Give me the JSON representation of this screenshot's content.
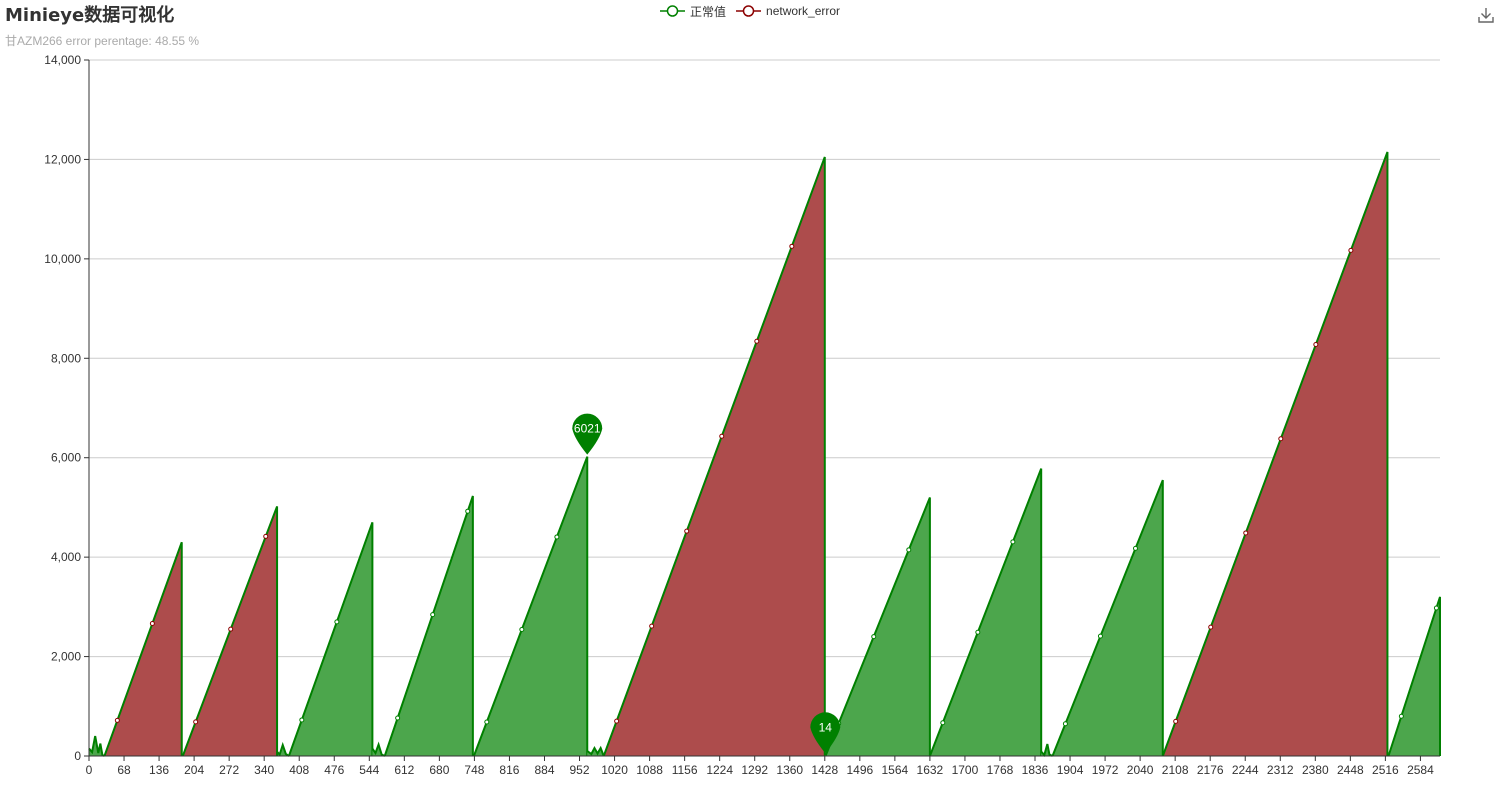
{
  "title": "Minieye数据可视化",
  "subtitle": "甘AZM266 error perentage: 48.55 %",
  "toolbox": {
    "download_icon": "download-icon"
  },
  "legend": [
    {
      "label": "正常值",
      "color": "#008000"
    },
    {
      "label": "network_error",
      "color": "#8b0000"
    }
  ],
  "colors": {
    "line": "#008000",
    "normal_fill": "#4ca64c",
    "error_fill": "#ad4c4c",
    "grid": "#cccccc",
    "axis": "#333333"
  },
  "chart_data": {
    "type": "area",
    "title": "Minieye数据可视化",
    "xlabel": "",
    "ylabel": "",
    "xlim": [
      0,
      2622
    ],
    "ylim": [
      0,
      14000
    ],
    "y_ticks": [
      0,
      2000,
      4000,
      6000,
      8000,
      10000,
      12000,
      14000
    ],
    "y_tick_labels": [
      "0",
      "2,000",
      "4,000",
      "6,000",
      "8,000",
      "10,000",
      "12,000",
      "14,000"
    ],
    "x_tick_labels": [
      "0",
      "68",
      "136",
      "204",
      "272",
      "340",
      "408",
      "476",
      "544",
      "612",
      "680",
      "748",
      "816",
      "884",
      "952",
      "1020",
      "1088",
      "1156",
      "1224",
      "1292",
      "1360",
      "1428",
      "1496",
      "1564",
      "1632",
      "1700",
      "1768",
      "1836",
      "1904",
      "1972",
      "2040",
      "2108",
      "2176",
      "2244",
      "2312",
      "2380",
      "2448",
      "2516",
      "2584"
    ],
    "grid": true,
    "legend_position": "top-center",
    "series": [
      {
        "name": "正常值",
        "segments": [
          {
            "x": [
              0,
              6,
              12,
              18,
              22,
              26,
              30
            ],
            "y": [
              150,
              80,
              400,
              60,
              250,
              20,
              0
            ]
          },
          {
            "x": [
              362,
              370,
              376,
              382,
              388
            ],
            "y": [
              120,
              30,
              220,
              40,
              0
            ]
          },
          {
            "x": [
              388,
              550
            ],
            "y": [
              0,
              4700
            ]
          },
          {
            "x": [
              550,
              556,
              562,
              568,
              574
            ],
            "y": [
              150,
              60,
              230,
              30,
              0
            ]
          },
          {
            "x": [
              574,
              745
            ],
            "y": [
              0,
              5230
            ]
          },
          {
            "x": [
              747,
              967
            ],
            "y": [
              0,
              6021
            ]
          },
          {
            "x": [
              967,
              975,
              981,
              987,
              993,
              999
            ],
            "y": [
              100,
              40,
              160,
              50,
              160,
              0
            ]
          },
          {
            "x": [
              1430,
              1632
            ],
            "y": [
              14,
              5200
            ]
          },
          {
            "x": [
              1632,
              1848
            ],
            "y": [
              0,
              5780
            ]
          },
          {
            "x": [
              1848,
              1854,
              1860,
              1864,
              1870
            ],
            "y": [
              90,
              20,
              240,
              30,
              0
            ]
          },
          {
            "x": [
              1870,
              2084
            ],
            "y": [
              0,
              5550
            ]
          },
          {
            "x": [
              2522,
              2622
            ],
            "y": [
              0,
              3200
            ]
          }
        ]
      },
      {
        "name": "network_error",
        "segments": [
          {
            "x": [
              30,
              180
            ],
            "y": [
              0,
              4300
            ]
          },
          {
            "x": [
              182,
              365
            ],
            "y": [
              0,
              5020
            ]
          },
          {
            "x": [
              999,
              1428
            ],
            "y": [
              0,
              12050
            ]
          },
          {
            "x": [
              2084,
              2520
            ],
            "y": [
              0,
              12150
            ]
          }
        ]
      }
    ],
    "annotations": [
      {
        "label": "6021",
        "x": 967,
        "y": 6021
      },
      {
        "label": "14",
        "x": 1429,
        "y": 14
      }
    ]
  }
}
